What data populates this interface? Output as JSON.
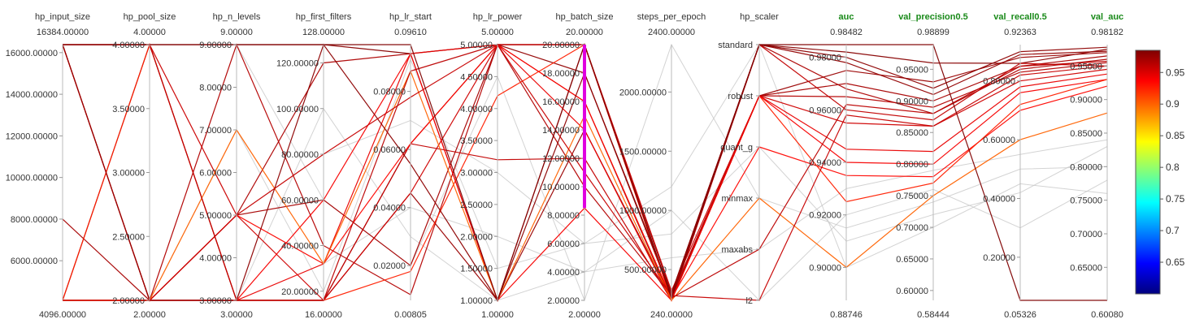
{
  "chart_data": {
    "type": "parallel_coordinates",
    "color_metric": "auc",
    "colorbar": {
      "min": 0.6,
      "max": 0.985,
      "ticks": [
        "0.95",
        "0.9",
        "0.85",
        "0.8",
        "0.75",
        "0.7",
        "0.65"
      ]
    },
    "axes": [
      {
        "name": "hp_input_size",
        "metric": false,
        "max": 16384,
        "min": 4096,
        "max_label": "16384.00000",
        "min_label": "4096.00000",
        "ticks": [
          {
            "v": 16000,
            "label": "16000.00000"
          },
          {
            "v": 14000,
            "label": "14000.00000"
          },
          {
            "v": 12000,
            "label": "12000.00000"
          },
          {
            "v": 10000,
            "label": "10000.00000"
          },
          {
            "v": 8000,
            "label": "8000.00000"
          },
          {
            "v": 6000,
            "label": "6000.00000"
          }
        ]
      },
      {
        "name": "hp_pool_size",
        "metric": false,
        "max": 4,
        "min": 2,
        "max_label": "4.00000",
        "min_label": "2.00000",
        "ticks": [
          {
            "v": 4,
            "label": "4.00000"
          },
          {
            "v": 3.5,
            "label": "3.50000"
          },
          {
            "v": 3,
            "label": "3.00000"
          },
          {
            "v": 2.5,
            "label": "2.50000"
          },
          {
            "v": 2,
            "label": "2.00000"
          }
        ]
      },
      {
        "name": "hp_n_levels",
        "metric": false,
        "max": 9,
        "min": 3,
        "max_label": "9.00000",
        "min_label": "3.00000",
        "ticks": [
          {
            "v": 9,
            "label": "9.00000"
          },
          {
            "v": 8,
            "label": "8.00000"
          },
          {
            "v": 7,
            "label": "7.00000"
          },
          {
            "v": 6,
            "label": "6.00000"
          },
          {
            "v": 5,
            "label": "5.00000"
          },
          {
            "v": 4,
            "label": "4.00000"
          },
          {
            "v": 3,
            "label": "3.00000"
          }
        ]
      },
      {
        "name": "hp_first_filters",
        "metric": false,
        "max": 128,
        "min": 16,
        "max_label": "128.00000",
        "min_label": "16.00000",
        "ticks": [
          {
            "v": 120,
            "label": "120.00000"
          },
          {
            "v": 100,
            "label": "100.00000"
          },
          {
            "v": 80,
            "label": "80.00000"
          },
          {
            "v": 60,
            "label": "60.00000"
          },
          {
            "v": 40,
            "label": "40.00000"
          },
          {
            "v": 20,
            "label": "20.00000"
          }
        ]
      },
      {
        "name": "hp_lr_start",
        "metric": false,
        "max": 0.0961,
        "min": 0.00805,
        "max_label": "0.09610",
        "min_label": "0.00805",
        "ticks": [
          {
            "v": 0.08,
            "label": "0.08000"
          },
          {
            "v": 0.06,
            "label": "0.06000"
          },
          {
            "v": 0.04,
            "label": "0.04000"
          },
          {
            "v": 0.02,
            "label": "0.02000"
          }
        ]
      },
      {
        "name": "hp_lr_power",
        "metric": false,
        "max": 5,
        "min": 1,
        "max_label": "5.00000",
        "min_label": "1.00000",
        "ticks": [
          {
            "v": 5,
            "label": "5.00000"
          },
          {
            "v": 4.5,
            "label": "4.50000"
          },
          {
            "v": 4,
            "label": "4.00000"
          },
          {
            "v": 3.5,
            "label": "3.50000"
          },
          {
            "v": 3,
            "label": "3.00000"
          },
          {
            "v": 2.5,
            "label": "2.50000"
          },
          {
            "v": 2,
            "label": "2.00000"
          },
          {
            "v": 1.5,
            "label": "1.50000"
          },
          {
            "v": 1,
            "label": "1.00000"
          }
        ]
      },
      {
        "name": "hp_batch_size",
        "metric": false,
        "max": 20,
        "min": 2,
        "max_label": "20.00000",
        "min_label": "2.00000",
        "brush": [
          8.5,
          20
        ],
        "ticks": [
          {
            "v": 20,
            "label": "20.00000"
          },
          {
            "v": 18,
            "label": "18.00000"
          },
          {
            "v": 16,
            "label": "16.00000"
          },
          {
            "v": 14,
            "label": "14.00000"
          },
          {
            "v": 12,
            "label": "12.00000"
          },
          {
            "v": 10,
            "label": "10.00000"
          },
          {
            "v": 8,
            "label": "8.00000"
          },
          {
            "v": 6,
            "label": "6.00000"
          },
          {
            "v": 4,
            "label": "4.00000"
          },
          {
            "v": 2,
            "label": "2.00000"
          }
        ]
      },
      {
        "name": "steps_per_epoch",
        "metric": false,
        "max": 2400,
        "min": 240,
        "max_label": "2400.00000",
        "min_label": "240.00000",
        "ticks": [
          {
            "v": 2000,
            "label": "2000.00000"
          },
          {
            "v": 1500,
            "label": "1500.00000"
          },
          {
            "v": 1000,
            "label": "1000.00000"
          },
          {
            "v": 500,
            "label": "500.00000"
          }
        ]
      },
      {
        "name": "hp_scaler",
        "metric": false,
        "categorical": true,
        "categories": [
          "standard",
          "robust",
          "quant_g",
          "minmax",
          "maxabs",
          "l2"
        ]
      },
      {
        "name": "auc",
        "metric": true,
        "max": 0.98482,
        "min": 0.88746,
        "max_label": "0.98482",
        "min_label": "0.88746",
        "ticks": [
          {
            "v": 0.98,
            "label": "0.98000"
          },
          {
            "v": 0.96,
            "label": "0.96000"
          },
          {
            "v": 0.94,
            "label": "0.94000"
          },
          {
            "v": 0.92,
            "label": "0.92000"
          },
          {
            "v": 0.9,
            "label": "0.90000"
          }
        ]
      },
      {
        "name": "val_precision0.5",
        "metric": true,
        "max": 0.98899,
        "min": 0.58444,
        "max_label": "0.98899",
        "min_label": "0.58444",
        "ticks": [
          {
            "v": 0.95,
            "label": "0.95000"
          },
          {
            "v": 0.9,
            "label": "0.90000"
          },
          {
            "v": 0.85,
            "label": "0.85000"
          },
          {
            "v": 0.8,
            "label": "0.80000"
          },
          {
            "v": 0.75,
            "label": "0.75000"
          },
          {
            "v": 0.7,
            "label": "0.70000"
          },
          {
            "v": 0.65,
            "label": "0.65000"
          },
          {
            "v": 0.6,
            "label": "0.60000"
          }
        ]
      },
      {
        "name": "val_recall0.5",
        "metric": true,
        "max": 0.92363,
        "min": 0.05326,
        "max_label": "0.92363",
        "min_label": "0.05326",
        "ticks": [
          {
            "v": 0.8,
            "label": "0.80000"
          },
          {
            "v": 0.6,
            "label": "0.60000"
          },
          {
            "v": 0.4,
            "label": "0.40000"
          },
          {
            "v": 0.2,
            "label": "0.20000"
          }
        ]
      },
      {
        "name": "val_auc",
        "metric": true,
        "max": 0.98182,
        "min": 0.6008,
        "max_label": "0.98182",
        "min_label": "0.60080",
        "ticks": [
          {
            "v": 0.95,
            "label": "0.95000"
          },
          {
            "v": 0.9,
            "label": "0.90000"
          },
          {
            "v": 0.85,
            "label": "0.85000"
          },
          {
            "v": 0.8,
            "label": "0.80000"
          },
          {
            "v": 0.75,
            "label": "0.75000"
          },
          {
            "v": 0.7,
            "label": "0.70000"
          },
          {
            "v": 0.65,
            "label": "0.65000"
          }
        ]
      }
    ],
    "runs": [
      [
        16384,
        4,
        9,
        128,
        0.093,
        5,
        20,
        300,
        "standard",
        0.982,
        0.96,
        0.86,
        0.975
      ],
      [
        16384,
        2,
        3,
        16,
        0.045,
        1,
        14,
        260,
        "robust",
        0.975,
        0.93,
        0.88,
        0.97
      ],
      [
        8000,
        2,
        5,
        60,
        0.02,
        5,
        16,
        240,
        "robust",
        0.97,
        0.9,
        0.85,
        0.965
      ],
      [
        4096,
        4,
        3,
        16,
        0.062,
        5,
        18,
        280,
        "standard",
        0.978,
        0.91,
        0.89,
        0.972
      ],
      [
        4096,
        2,
        5,
        120,
        0.093,
        1,
        20,
        250,
        "standard",
        0.968,
        0.88,
        0.84,
        0.96
      ],
      [
        16384,
        2,
        9,
        40,
        0.01,
        5,
        10,
        280,
        "robust",
        0.965,
        0.89,
        0.83,
        0.955
      ],
      [
        4096,
        2,
        3,
        16,
        0.062,
        3.2,
        12,
        240,
        "standard",
        0.96,
        0.87,
        0.86,
        0.95
      ],
      [
        16384,
        4,
        5,
        16,
        0.045,
        5,
        20,
        320,
        "robust",
        0.955,
        0.86,
        0.8,
        0.945
      ],
      [
        4096,
        2,
        3,
        60,
        0.093,
        1,
        8.5,
        240,
        "robust",
        0.94,
        0.8,
        0.76,
        0.93
      ],
      [
        16384,
        2,
        5,
        32,
        0.062,
        5,
        16,
        260,
        "quant_g",
        0.935,
        0.78,
        0.7,
        0.92
      ],
      [
        4096,
        4,
        3,
        16,
        0.018,
        4.2,
        20,
        240,
        "robust",
        0.925,
        0.77,
        0.72,
        0.93
      ],
      [
        4096,
        2,
        3,
        32,
        0.093,
        5,
        14,
        240,
        "robust",
        0.945,
        0.82,
        0.78,
        0.938
      ],
      [
        4096,
        2,
        7,
        32,
        0.087,
        1,
        15,
        240,
        "minmax",
        0.9,
        0.75,
        0.6,
        0.88
      ],
      [
        16384,
        2,
        3,
        128,
        0.055,
        1,
        18,
        300,
        "standard",
        0.98,
        0.92,
        0.9,
        0.978
      ],
      [
        4096,
        2,
        5,
        80,
        0.078,
        5,
        11,
        280,
        "l2",
        0.958,
        0.86,
        0.82,
        0.95
      ],
      [
        16384,
        4,
        3,
        16,
        0.087,
        5,
        20,
        260,
        "maxabs",
        0.962,
        0.88,
        0.85,
        0.957
      ],
      [
        4096,
        2,
        7,
        20,
        0.091,
        1.5,
        6,
        800,
        "quant_g",
        0.91,
        0.72,
        0.42,
        0.83
      ],
      [
        4096,
        4,
        5,
        32,
        0.04,
        2,
        4,
        1000,
        "l2",
        0.92,
        0.76,
        0.3,
        0.78
      ],
      [
        16384,
        2,
        9,
        60,
        0.02,
        4.5,
        2,
        2400,
        "minmax",
        0.915,
        0.74,
        0.5,
        0.8
      ],
      [
        4096,
        2,
        3,
        100,
        0.03,
        1,
        4,
        600,
        "maxabs",
        0.93,
        0.79,
        0.55,
        0.84
      ],
      [
        16384,
        2,
        5,
        80,
        0.07,
        3,
        6,
        1200,
        "standard",
        0.9,
        0.7,
        0.45,
        0.76
      ],
      [
        16384,
        4,
        9,
        128,
        0.0961,
        1,
        20,
        260,
        "standard",
        0.98482,
        0.98899,
        0.05326,
        0.6008
      ]
    ]
  }
}
